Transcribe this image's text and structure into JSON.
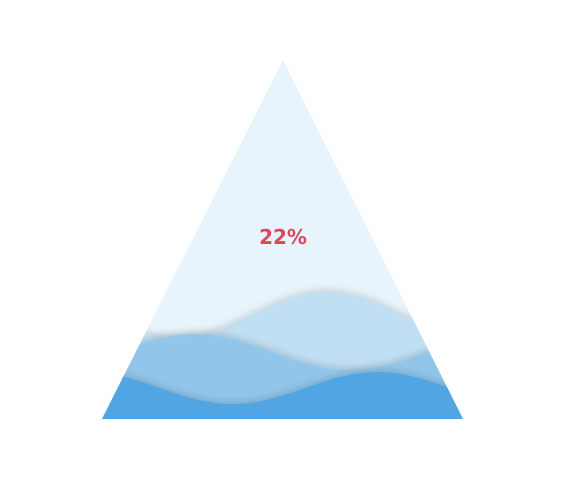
{
  "chart_data": {
    "type": "liquidFill",
    "shape": "triangle",
    "value": 0.22,
    "label": "22%",
    "colors": {
      "background": "#e8f4fc",
      "waves": [
        "#bfdff4",
        "#8ec5eb",
        "#4aa3e3"
      ],
      "label": "#d9485b"
    }
  }
}
